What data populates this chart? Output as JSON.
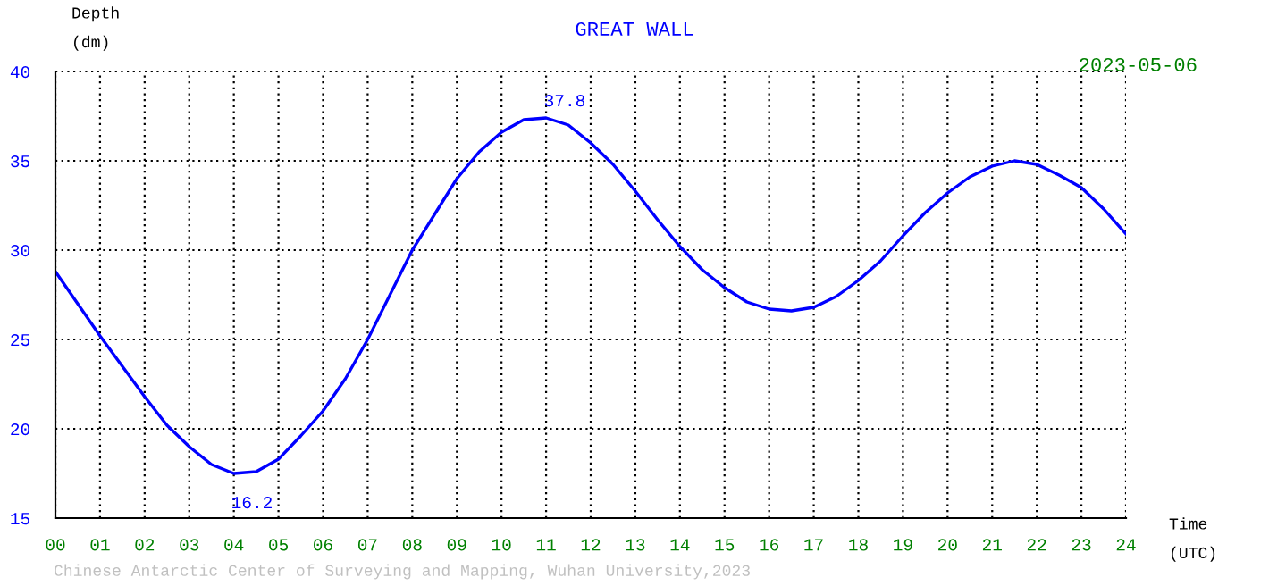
{
  "chart_data": {
    "type": "line",
    "title": "GREAT WALL",
    "xlabel": "Time\n(UTC)",
    "ylabel": "Depth\n(dm)",
    "annotations": [
      "37.8",
      "16.2",
      "2023-05-06",
      "Chinese Antarctic Center of Surveying and Mapping, Wuhan University,2023"
    ],
    "x": [
      0,
      0.5,
      1,
      1.5,
      2,
      2.5,
      3,
      3.5,
      4,
      4.5,
      5,
      5.5,
      6,
      6.5,
      7,
      7.5,
      8,
      8.5,
      9,
      9.5,
      10,
      10.5,
      11,
      11.5,
      12,
      12.5,
      13,
      13.5,
      14,
      14.5,
      15,
      15.5,
      16,
      16.5,
      17,
      17.5,
      18,
      18.5,
      19,
      19.5,
      20,
      20.5,
      21,
      21.5,
      22,
      22.5,
      23,
      23.5,
      24
    ],
    "series": [
      {
        "color": "#0000ff",
        "values": [
          28.8,
          27.0,
          25.2,
          23.5,
          21.8,
          20.2,
          19.0,
          18.0,
          17.5,
          17.6,
          18.3,
          19.6,
          21.0,
          22.8,
          25.0,
          27.5,
          30.0,
          32.0,
          34.0,
          35.5,
          36.6,
          37.3,
          37.4,
          37.0,
          36.0,
          34.8,
          33.3,
          31.7,
          30.2,
          28.9,
          27.9,
          27.1,
          26.7,
          26.6,
          26.8,
          27.4,
          28.3,
          29.4,
          30.8,
          32.1,
          33.2,
          34.1,
          34.7,
          35.0,
          34.8,
          34.2,
          33.5,
          32.3,
          30.9
        ]
      }
    ],
    "xlim": [
      0,
      24
    ],
    "ylim": [
      15,
      40
    ],
    "xticks": [
      {
        "value": 0,
        "label": "00"
      },
      {
        "value": 1,
        "label": "01"
      },
      {
        "value": 2,
        "label": "02"
      },
      {
        "value": 3,
        "label": "03"
      },
      {
        "value": 4,
        "label": "04"
      },
      {
        "value": 5,
        "label": "05"
      },
      {
        "value": 6,
        "label": "06"
      },
      {
        "value": 7,
        "label": "07"
      },
      {
        "value": 8,
        "label": "08"
      },
      {
        "value": 9,
        "label": "09"
      },
      10,
      11,
      12,
      13,
      14,
      15,
      16,
      17,
      18,
      19,
      20,
      21,
      22,
      23,
      24
    ],
    "yticks": [
      15,
      20,
      25,
      30,
      35,
      40
    ],
    "grid": true,
    "marker": "none",
    "line_style": "solid"
  }
}
